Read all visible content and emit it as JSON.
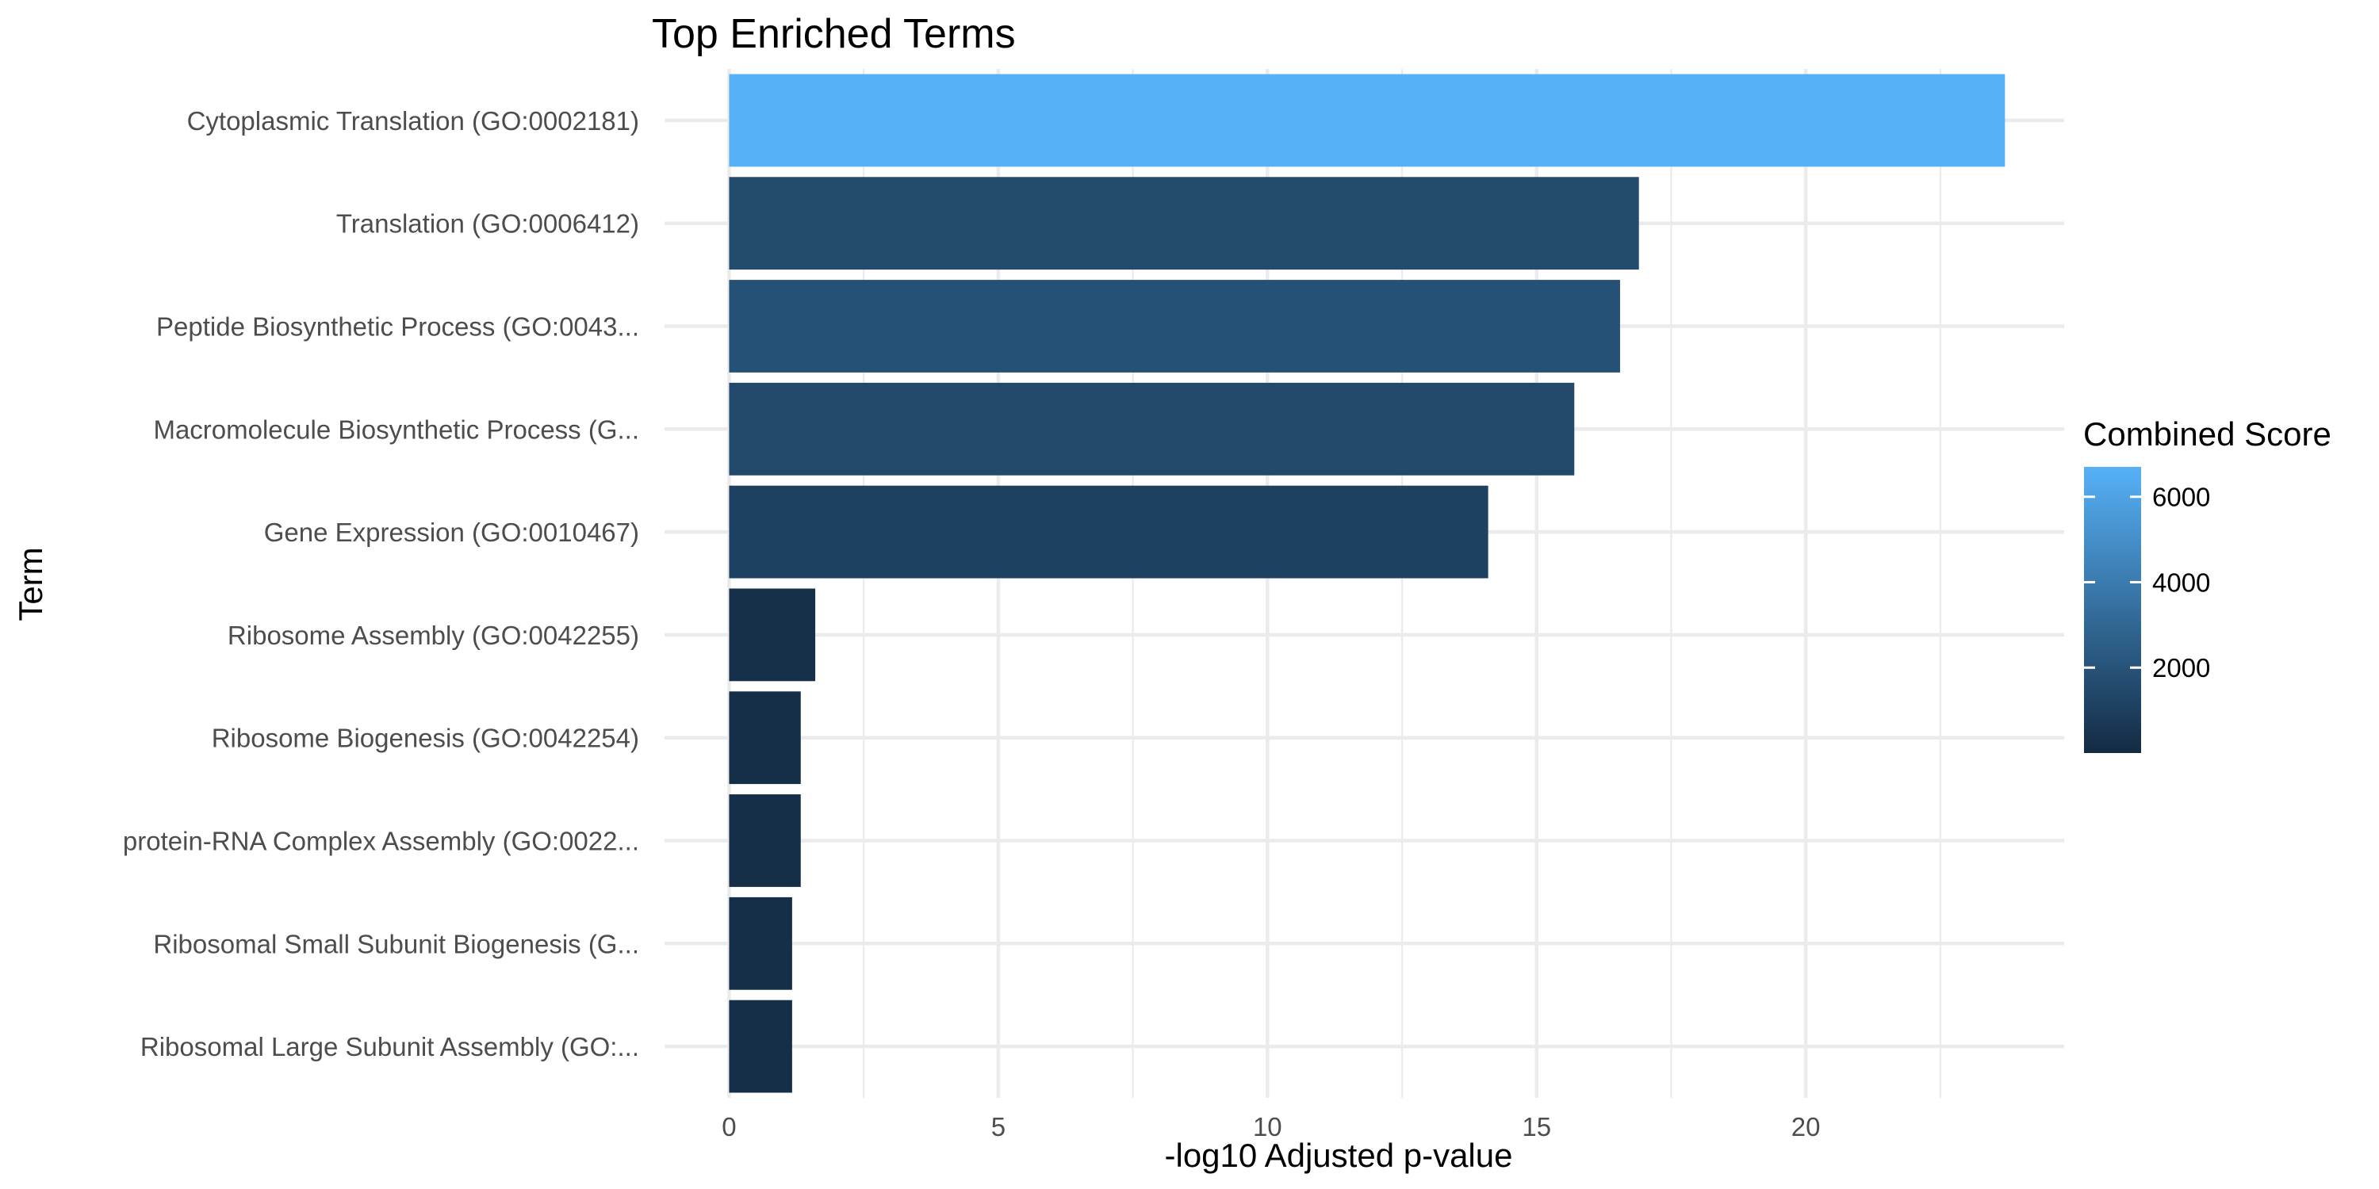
{
  "chart_data": {
    "type": "bar",
    "orientation": "horizontal",
    "title": "Top Enriched Terms",
    "xlabel": "-log10 Adjusted p-value",
    "ylabel": "Term",
    "xlim": [
      -1.2,
      24.8
    ],
    "xticks": [
      0,
      5,
      10,
      15,
      20
    ],
    "categories": [
      "Cytoplasmic Translation (GO:0002181)",
      "Translation (GO:0006412)",
      "Peptide Biosynthetic Process (GO:0043...",
      "Macromolecule Biosynthetic Process (G...",
      "Gene Expression (GO:0010467)",
      "Ribosome Assembly (GO:0042255)",
      "Ribosome Biogenesis (GO:0042254)",
      "protein-RNA Complex Assembly (GO:0022...",
      "Ribosomal Small Subunit Biogenesis (G...",
      "Ribosomal Large Subunit Assembly (GO:..."
    ],
    "values": [
      23.7,
      16.9,
      16.55,
      15.7,
      14.1,
      1.6,
      1.33,
      1.33,
      1.17,
      1.17
    ],
    "color_values": [
      6700,
      1600,
      1900,
      1500,
      1100,
      250,
      200,
      200,
      180,
      180
    ],
    "legend": {
      "title": "Combined Score",
      "position": "right",
      "ticks": [
        2000,
        4000,
        6000
      ],
      "range": [
        0,
        6700
      ],
      "color_low": "#132b43",
      "color_high": "#56b1f7"
    },
    "grid": true
  }
}
